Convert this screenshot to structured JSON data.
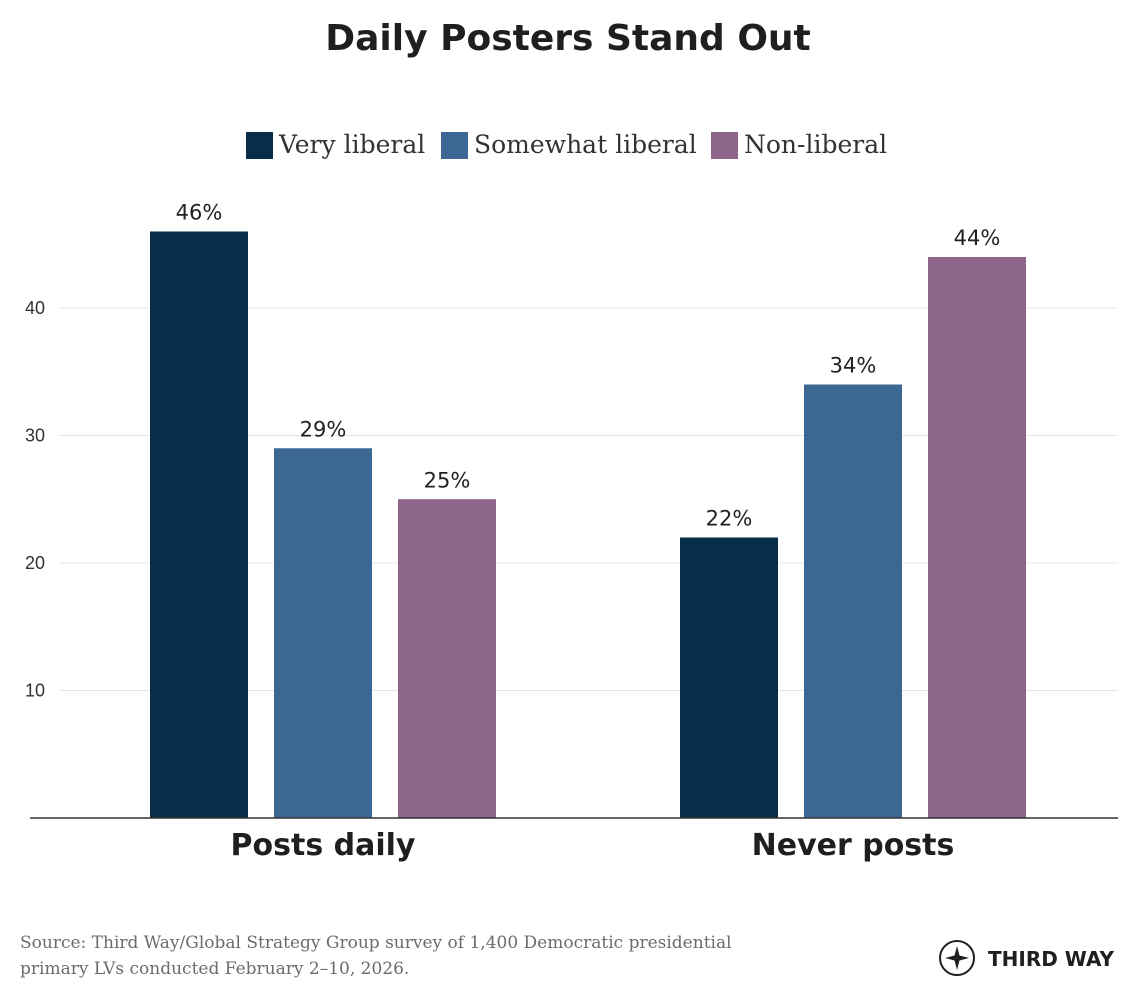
{
  "chart_data": {
    "type": "bar",
    "title": "Daily Posters Stand Out",
    "categories": [
      "Posts daily",
      "Never posts"
    ],
    "series": [
      {
        "name": "Very liberal",
        "values": [
          46,
          22
        ],
        "color": "#072d48"
      },
      {
        "name": "Somewhat liberal",
        "values": [
          29,
          34
        ],
        "color": "#3c6793"
      },
      {
        "name": "Non-liberal",
        "values": [
          25,
          44
        ],
        "color": "#8c6589"
      }
    ],
    "data_labels": [
      [
        "46%",
        "22%"
      ],
      [
        "29%",
        "34%"
      ],
      [
        "25%",
        "44%"
      ]
    ],
    "yticks": [
      "10",
      "20",
      "30",
      "40"
    ],
    "ylim": [
      0,
      50
    ],
    "grid": true,
    "legend_position": "top",
    "xlabel": "",
    "ylabel": ""
  },
  "footer": {
    "source_line1": "Source: Third Way/Global Strategy Group survey of 1,400 Democratic presidential",
    "source_line2": "primary LVs conducted February 2–10, 2026.",
    "brand_name": "THIRD WAY",
    "brand_icon": "compass-star-icon"
  }
}
